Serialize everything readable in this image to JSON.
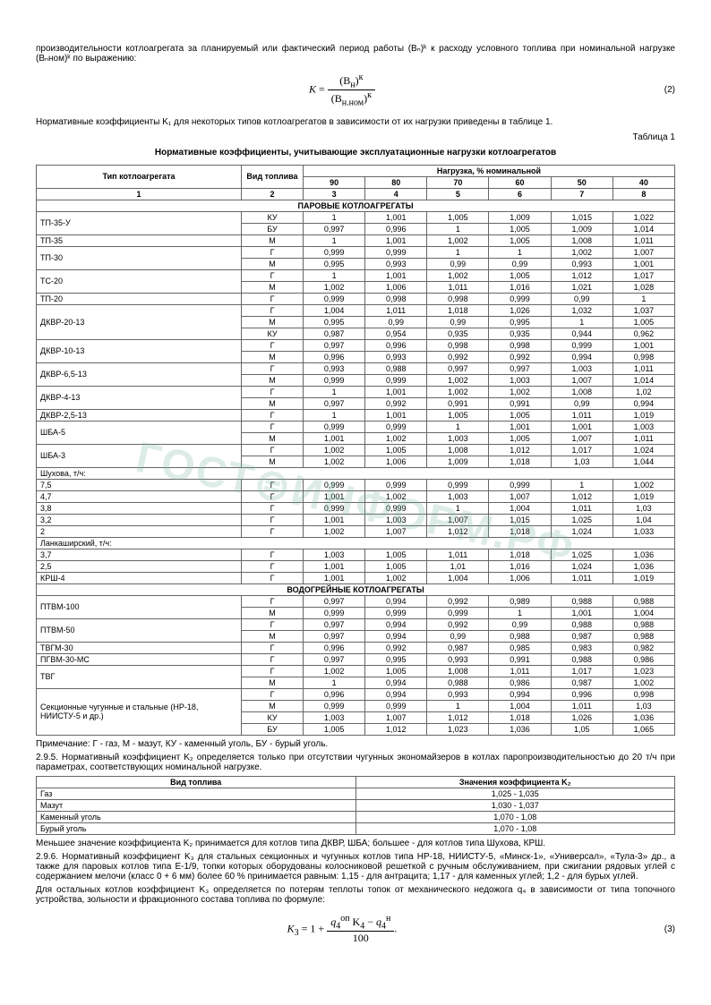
{
  "intro": {
    "p1": "производительности котлоагрегата за планируемый или фактический период работы (Bₙ)ᵏ к расходу условного топлива при номинальной нагрузке (Bₙном)ᵏ по выражению:",
    "formula2_num": "(2)",
    "p2": "Нормативные коэффициенты K₁ для некоторых типов котлоагрегатов в зависимости от их нагрузки приведены в таблице 1.",
    "table_label": "Таблица 1",
    "table_title": "Нормативные коэффициенты, учитывающие эксплуатационные нагрузки котлоагрегатов"
  },
  "table1": {
    "h_type": "Тип котлоагрегата",
    "h_fuel": "Вид топлива",
    "h_load": "Нагрузка, % номинальной",
    "load_cols": [
      "90",
      "80",
      "70",
      "60",
      "50",
      "40"
    ],
    "idx_cols": [
      "1",
      "2",
      "3",
      "4",
      "5",
      "6",
      "7",
      "8"
    ],
    "sec1": "ПАРОВЫЕ КОТЛОАГРЕГАТЫ",
    "sec2": "ВОДОГРЕЙНЫЕ КОТЛОАГРЕГАТЫ",
    "shukhova": "Шухова, т/ч:",
    "lankash": "Ланкаширский, т/ч:",
    "rows_steam1": [
      {
        "name": "ТП-35-У",
        "fuel": [
          "КУ",
          "БУ"
        ],
        "vals": [
          [
            "1",
            "1,001",
            "1,005",
            "1,009",
            "1,015",
            "1,022"
          ],
          [
            "0,997",
            "0,996",
            "1",
            "1,005",
            "1,009",
            "1,014"
          ]
        ]
      },
      {
        "name": "ТП-35",
        "fuel": [
          "М"
        ],
        "vals": [
          [
            "1",
            "1,001",
            "1,002",
            "1,005",
            "1,008",
            "1,011"
          ]
        ]
      },
      {
        "name": "ТП-30",
        "fuel": [
          "Г",
          "М"
        ],
        "vals": [
          [
            "0,999",
            "0,999",
            "1",
            "1",
            "1,002",
            "1,007"
          ],
          [
            "0,995",
            "0,993",
            "0,99",
            "0,99",
            "0,993",
            "1,001"
          ]
        ]
      },
      {
        "name": "ТС-20",
        "fuel": [
          "Г",
          "М"
        ],
        "vals": [
          [
            "1",
            "1,001",
            "1,002",
            "1,005",
            "1,012",
            "1,017"
          ],
          [
            "1,002",
            "1,006",
            "1,011",
            "1,016",
            "1,021",
            "1,028"
          ]
        ]
      },
      {
        "name": "ТП-20",
        "fuel": [
          "Г"
        ],
        "vals": [
          [
            "0,999",
            "0,998",
            "0,998",
            "0,999",
            "0,99",
            "1"
          ]
        ]
      },
      {
        "name": "ДКВР-20-13",
        "fuel": [
          "Г",
          "М",
          "КУ"
        ],
        "vals": [
          [
            "1,004",
            "1,011",
            "1,018",
            "1,026",
            "1,032",
            "1,037"
          ],
          [
            "0,995",
            "0,99",
            "0,99",
            "0,995",
            "1",
            "1,005"
          ],
          [
            "0,987",
            "0,954",
            "0,935",
            "0,935",
            "0,944",
            "0,962"
          ]
        ]
      },
      {
        "name": "ДКВР-10-13",
        "fuel": [
          "Г",
          "М"
        ],
        "vals": [
          [
            "0,997",
            "0,996",
            "0,998",
            "0,998",
            "0,999",
            "1,001"
          ],
          [
            "0,996",
            "0,993",
            "0,992",
            "0,992",
            "0,994",
            "0,998"
          ]
        ]
      },
      {
        "name": "ДКВР-6,5-13",
        "fuel": [
          "Г",
          "М"
        ],
        "vals": [
          [
            "0,993",
            "0,988",
            "0,997",
            "0,997",
            "1,003",
            "1,011"
          ],
          [
            "0,999",
            "0,999",
            "1,002",
            "1,003",
            "1,007",
            "1,014"
          ]
        ]
      },
      {
        "name": "ДКВР-4-13",
        "fuel": [
          "Г",
          "М"
        ],
        "vals": [
          [
            "1",
            "1,001",
            "1,002",
            "1,002",
            "1,008",
            "1,02"
          ],
          [
            "0,997",
            "0,992",
            "0,991",
            "0,991",
            "0,99",
            "0,994"
          ]
        ]
      },
      {
        "name": "ДКВР-2,5-13",
        "fuel": [
          "Г"
        ],
        "vals": [
          [
            "1",
            "1,001",
            "1,005",
            "1,005",
            "1,011",
            "1,019"
          ]
        ]
      },
      {
        "name": "ШБА-5",
        "fuel": [
          "Г",
          "М"
        ],
        "vals": [
          [
            "0,999",
            "0,999",
            "1",
            "1,001",
            "1,001",
            "1,003"
          ],
          [
            "1,001",
            "1,002",
            "1,003",
            "1,005",
            "1,007",
            "1,011"
          ]
        ]
      },
      {
        "name": "ШБА-3",
        "fuel": [
          "Г",
          "М"
        ],
        "vals": [
          [
            "1,002",
            "1,005",
            "1,008",
            "1,012",
            "1,017",
            "1,024"
          ],
          [
            "1,002",
            "1,006",
            "1,009",
            "1,018",
            "1,03",
            "1,044"
          ]
        ]
      }
    ],
    "rows_shukh": [
      {
        "name": "7,5",
        "fuel": [
          "Г"
        ],
        "vals": [
          [
            "0,999",
            "0,999",
            "0,999",
            "0,999",
            "1",
            "1,002"
          ]
        ]
      },
      {
        "name": "4,7",
        "fuel": [
          "Г"
        ],
        "vals": [
          [
            "1,001",
            "1,002",
            "1,003",
            "1,007",
            "1,012",
            "1,019"
          ]
        ]
      },
      {
        "name": "3,8",
        "fuel": [
          "Г"
        ],
        "vals": [
          [
            "0,999",
            "0,999",
            "1",
            "1,004",
            "1,011",
            "1,03"
          ]
        ]
      },
      {
        "name": "3,2",
        "fuel": [
          "Г"
        ],
        "vals": [
          [
            "1,001",
            "1,003",
            "1,007",
            "1,015",
            "1,025",
            "1,04"
          ]
        ]
      },
      {
        "name": "2",
        "fuel": [
          "Г"
        ],
        "vals": [
          [
            "1,002",
            "1,007",
            "1,012",
            "1,018",
            "1,024",
            "1,033"
          ]
        ]
      }
    ],
    "rows_lank": [
      {
        "name": "3,7",
        "fuel": [
          "Г"
        ],
        "vals": [
          [
            "1,003",
            "1,005",
            "1,011",
            "1,018",
            "1,025",
            "1,036"
          ]
        ]
      },
      {
        "name": "2,5",
        "fuel": [
          "Г"
        ],
        "vals": [
          [
            "1,001",
            "1,005",
            "1,01",
            "1,016",
            "1,024",
            "1,036"
          ]
        ]
      },
      {
        "name": "КРШ-4",
        "fuel": [
          "Г"
        ],
        "vals": [
          [
            "1,001",
            "1,002",
            "1,004",
            "1,006",
            "1,011",
            "1,019"
          ]
        ]
      }
    ],
    "rows_water": [
      {
        "name": "ПТВМ-100",
        "fuel": [
          "Г",
          "М"
        ],
        "vals": [
          [
            "0,997",
            "0,994",
            "0,992",
            "0,989",
            "0,988",
            "0,988"
          ],
          [
            "0,999",
            "0,999",
            "0,999",
            "1",
            "1,001",
            "1,004"
          ]
        ]
      },
      {
        "name": "ПТВМ-50",
        "fuel": [
          "Г",
          "М"
        ],
        "vals": [
          [
            "0,997",
            "0,994",
            "0,992",
            "0,99",
            "0,988",
            "0,988"
          ],
          [
            "0,997",
            "0,994",
            "0,99",
            "0,988",
            "0,987",
            "0,988"
          ]
        ]
      },
      {
        "name": "ТВГМ-30",
        "fuel": [
          "Г"
        ],
        "vals": [
          [
            "0,996",
            "0,992",
            "0,987",
            "0,985",
            "0,983",
            "0,982"
          ]
        ]
      },
      {
        "name": "ПГВМ-30-МС",
        "fuel": [
          "Г"
        ],
        "vals": [
          [
            "0,997",
            "0,995",
            "0,993",
            "0,991",
            "0,988",
            "0,986"
          ]
        ]
      },
      {
        "name": "ТВГ",
        "fuel": [
          "Г",
          "М"
        ],
        "vals": [
          [
            "1,002",
            "1,005",
            "1,008",
            "1,011",
            "1,017",
            "1,023"
          ],
          [
            "1",
            "0,994",
            "0,988",
            "0,986",
            "0,987",
            "1,002"
          ]
        ]
      },
      {
        "name": "Секционные чугунные и стальные (НР-18, НИИСТУ-5 и др.)",
        "fuel": [
          "Г",
          "М",
          "КУ",
          "БУ"
        ],
        "vals": [
          [
            "0,996",
            "0,994",
            "0,993",
            "0,994",
            "0,996",
            "0,998"
          ],
          [
            "0,999",
            "0,999",
            "1",
            "1,004",
            "1,011",
            "1,03"
          ],
          [
            "1,003",
            "1,007",
            "1,012",
            "1,018",
            "1,026",
            "1,036"
          ],
          [
            "1,005",
            "1,012",
            "1,023",
            "1,036",
            "1,05",
            "1,065"
          ]
        ]
      }
    ]
  },
  "notes": {
    "p1": "Примечание: Г - газ, М - мазут, КУ - каменный уголь, БУ - бурый уголь.",
    "p2": "2.9.5. Нормативный коэффициент K₂ определяется только при отсутствии чугунных экономайзеров в котлах паропроизводительностью до 20 т/ч при параметрах, соответствующих номинальной нагрузке."
  },
  "table2": {
    "h1": "Вид топлива",
    "h2": "Значения коэффициента K₂",
    "rows": [
      [
        "Газ",
        "1,025 - 1,035"
      ],
      [
        "Мазут",
        "1,030 - 1,037"
      ],
      [
        "Каменный уголь",
        "1,070 - 1,08"
      ],
      [
        "Бурый уголь",
        "1,070 - 1,08"
      ]
    ]
  },
  "after": {
    "p1": "Меньшее значение коэффициента K₂ принимается для котлов типа ДКВР, ШБА; большее - для котлов типа Шухова, КРШ.",
    "p2": "2.9.6. Нормативный коэффициент K₃ для стальных секционных и чугунных котлов типа НР-18, НИИСТУ-5, «Минск-1», «Универсал», «Тула-3» др., а также для паровых котлов типа Е-1/9, топки которых оборудованы колосниковой решеткой с ручным обслуживанием, при сжигании рядовых углей с содержанием мелочи (класс 0 + 6 мм) более 60 % принимается равным: 1,15 - для антрацита; 1,17 - для каменных углей; 1,2 - для бурых углей.",
    "p3": "Для остальных котлов коэффициент K₃ определяется по потерям теплоты топок от механического недожога q₄ в зависимости от типа топочного устройства, зольности и фракционного состава топлива по формуле:",
    "formula3_num": "(3)"
  }
}
